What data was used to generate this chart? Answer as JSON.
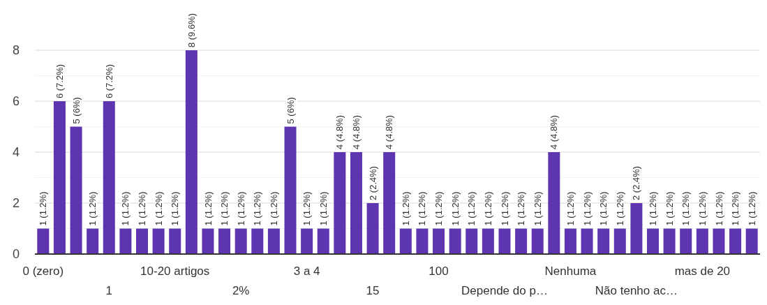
{
  "chart_data": {
    "type": "bar",
    "categories": [
      "0 (zero)",
      null,
      null,
      null,
      "1",
      null,
      null,
      null,
      "10-20 artigos",
      null,
      null,
      null,
      "2%",
      null,
      null,
      null,
      "3 a 4",
      null,
      null,
      null,
      "15",
      null,
      null,
      null,
      "100",
      null,
      null,
      null,
      "Depende do p…",
      null,
      null,
      null,
      "Nenhuma",
      null,
      null,
      null,
      "Não tenho ac…",
      null,
      null,
      null,
      "mas de 20",
      null,
      null,
      null
    ],
    "values": [
      1,
      6,
      5,
      1,
      6,
      1,
      1,
      1,
      1,
      8,
      1,
      1,
      1,
      1,
      1,
      5,
      1,
      1,
      4,
      4,
      2,
      4,
      1,
      1,
      1,
      1,
      1,
      1,
      1,
      1,
      1,
      4,
      1,
      1,
      1,
      1,
      2,
      1,
      1,
      1,
      1,
      1,
      1,
      1
    ],
    "value_labels": [
      "1 (1.2%)",
      "6 (7.2%)",
      "5 (6%)",
      "1 (1.2%)",
      "6 (7.2%)",
      "1 (1.2%)",
      "1 (1.2%)",
      "1 (1.2%)",
      "1 (1.2%)",
      "8 (9.6%)",
      "1 (1.2%)",
      "1 (1.2%)",
      "1 (1.2%)",
      "1 (1.2%)",
      "1 (1.2%)",
      "5 (6%)",
      "1 (1.2%)",
      "1 (1.2%)",
      "4 (4.8%)",
      "4 (4.8%)",
      "2 (2.4%)",
      "4 (4.8%)",
      "1 (1.2%)",
      "1 (1.2%)",
      "1 (1.2%)",
      "1 (1.2%)",
      "1 (1.2%)",
      "1 (1.2%)",
      "1 (1.2%)",
      "1 (1.2%)",
      "1 (1.2%)",
      "4 (4.8%)",
      "1 (1.2%)",
      "1 (1.2%)",
      "1 (1.2%)",
      "1 (1.2%)",
      "2 (2.4%)",
      "1 (1.2%)",
      "1 (1.2%)",
      "1 (1.2%)",
      "1 (1.2%)",
      "1 (1.2%)",
      "1 (1.2%)",
      "1 (1.2%)"
    ],
    "color": "#5e35b1",
    "ylim": [
      0,
      8
    ],
    "yticks": [
      0,
      {
        "value": 1,
        "label": null
      },
      2,
      {
        "value": 3,
        "label": null
      },
      4,
      {
        "value": 5,
        "label": null
      },
      6,
      {
        "value": 7,
        "label": null
      },
      8
    ],
    "grid": true
  }
}
